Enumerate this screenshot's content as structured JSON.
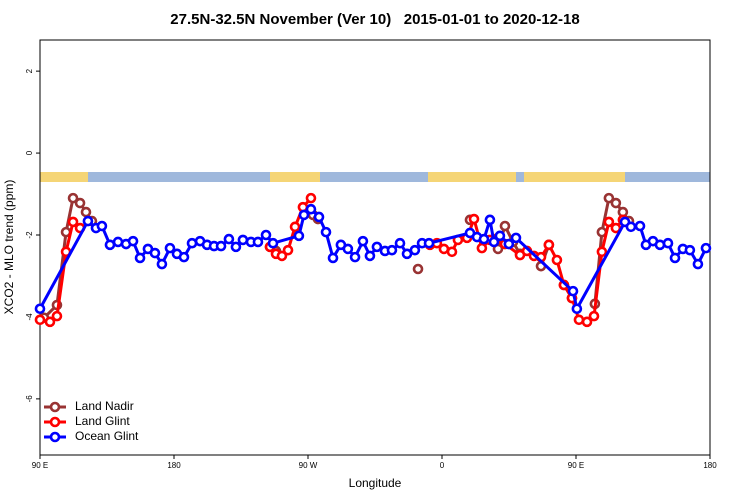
{
  "chart_data": {
    "type": "line",
    "title": "27.5N-32.5N November (Ver 10)   2015-01-01 to 2020-12-18",
    "x_label": "Longitude",
    "y_label": "XCO2 - MLO trend (ppm)",
    "xlim": [
      90,
      540
    ],
    "xticks": [
      {
        "value": 90,
        "label": "90 E"
      },
      {
        "value": 180,
        "label": "180"
      },
      {
        "value": 270,
        "label": "90 W"
      },
      {
        "value": 360,
        "label": "0"
      },
      {
        "value": 450,
        "label": "90 E"
      },
      {
        "value": 540,
        "label": "180"
      }
    ],
    "ylim": [
      -7.37,
      2.76
    ],
    "yticks": [
      2,
      0,
      -2,
      -4,
      -6
    ],
    "legend": "bottom-left",
    "series": [
      {
        "name": "Land Nadir",
        "color": "#993333",
        "x": [
          92.7,
          101.4,
          107.5,
          112.2,
          116.9,
          120.9,
          124.9,
          null,
          244.5,
          248.5,
          null,
          273.3,
          276.7,
          null,
          343.9,
          null,
          378.8,
          null,
          397.6,
          402.3,
          407.7,
          412.4,
          null,
          426.5,
          431.8,
          null,
          441.9,
          447.3,
          null,
          462.7,
          467.4,
          472.1,
          476.8,
          481.5,
          485.6
        ],
        "values": [
          -4.02,
          -3.71,
          -1.93,
          -1.1,
          -1.22,
          -1.44,
          -1.66,
          null,
          -2.29,
          -2.39,
          null,
          -1.51,
          -1.61,
          null,
          -2.83,
          null,
          -1.63,
          null,
          -2.34,
          -1.78,
          -2.17,
          -2.46,
          null,
          -2.76,
          -2.24,
          null,
          -3.22,
          -3.54,
          null,
          -3.68,
          -1.93,
          -1.1,
          -1.22,
          -1.44,
          -1.66
        ]
      },
      {
        "name": "Land Glint",
        "color": "#ff0000",
        "x": [
          90,
          96.7,
          101.4,
          107.5,
          112.2,
          116.9,
          null,
          244.5,
          248.5,
          252.5,
          256.6,
          261.3,
          266.6,
          272.0,
          null,
          351.9,
          356.6,
          361.3,
          366.7,
          370.7,
          376.8,
          381.5,
          386.8,
          392.2,
          397.6,
          402.3,
          412.4,
          417.1,
          421.8,
          426.5,
          431.8,
          437.2,
          441.9,
          447.3,
          452.0,
          457.4,
          462.1,
          467.4,
          472.1,
          476.8,
          481.5
        ],
        "values": [
          -4.07,
          -4.12,
          -3.98,
          -2.41,
          -1.68,
          -1.83,
          null,
          -2.29,
          -2.46,
          -2.51,
          -2.37,
          -1.8,
          -1.32,
          -1.1,
          null,
          -2.24,
          -2.2,
          -2.34,
          -2.41,
          -2.12,
          -2.07,
          -1.61,
          -2.32,
          -2.12,
          -2.07,
          -2.22,
          -2.49,
          -2.39,
          -2.51,
          -2.54,
          -2.24,
          -2.61,
          -3.22,
          -3.54,
          -4.07,
          -4.12,
          -3.98,
          -2.41,
          -1.68,
          -1.83,
          -1.63
        ]
      },
      {
        "name": "Ocean Glint",
        "color": "#0000ff",
        "x": [
          90,
          122.2,
          127.6,
          131.6,
          137.0,
          142.4,
          147.8,
          152.5,
          157.2,
          162.5,
          167.2,
          171.9,
          177.3,
          182.0,
          186.7,
          192.1,
          197.5,
          202.2,
          206.9,
          211.6,
          216.9,
          221.6,
          226.3,
          231.7,
          236.4,
          241.8,
          246.5,
          263.9,
          267.3,
          272.0,
          277.4,
          282.1,
          286.8,
          292.1,
          296.8,
          301.6,
          306.9,
          311.6,
          316.3,
          321.7,
          326.4,
          331.8,
          336.5,
          341.8,
          346.6,
          351.3,
          378.8,
          383.5,
          388.2,
          392.2,
          394.9,
          398.9,
          404.9,
          409.7,
          448.0,
          450.6,
          482.9,
          486.9,
          493.0,
          497.0,
          501.7,
          506.4,
          511.8,
          516.5,
          521.8,
          526.5,
          531.9,
          537.3
        ],
        "values": [
          -3.8,
          -1.66,
          -1.83,
          -1.78,
          -2.24,
          -2.17,
          -2.22,
          -2.15,
          -2.56,
          -2.34,
          -2.44,
          -2.71,
          -2.32,
          -2.46,
          -2.54,
          -2.2,
          -2.15,
          -2.24,
          -2.27,
          -2.27,
          -2.1,
          -2.29,
          -2.12,
          -2.17,
          -2.17,
          -2.0,
          -2.2,
          -2.02,
          -1.51,
          -1.37,
          -1.56,
          -1.93,
          -2.56,
          -2.24,
          -2.34,
          -2.54,
          -2.15,
          -2.51,
          -2.29,
          -2.39,
          -2.37,
          -2.2,
          -2.46,
          -2.37,
          -2.2,
          -2.2,
          -1.95,
          -2.05,
          -2.1,
          -1.63,
          -2.17,
          -2.02,
          -2.22,
          -2.07,
          -3.37,
          -3.8,
          -1.68,
          -1.8,
          -1.78,
          -2.24,
          -2.15,
          -2.24,
          -2.2,
          -2.56,
          -2.34,
          -2.37,
          -2.71,
          -2.32
        ]
      }
    ]
  }
}
